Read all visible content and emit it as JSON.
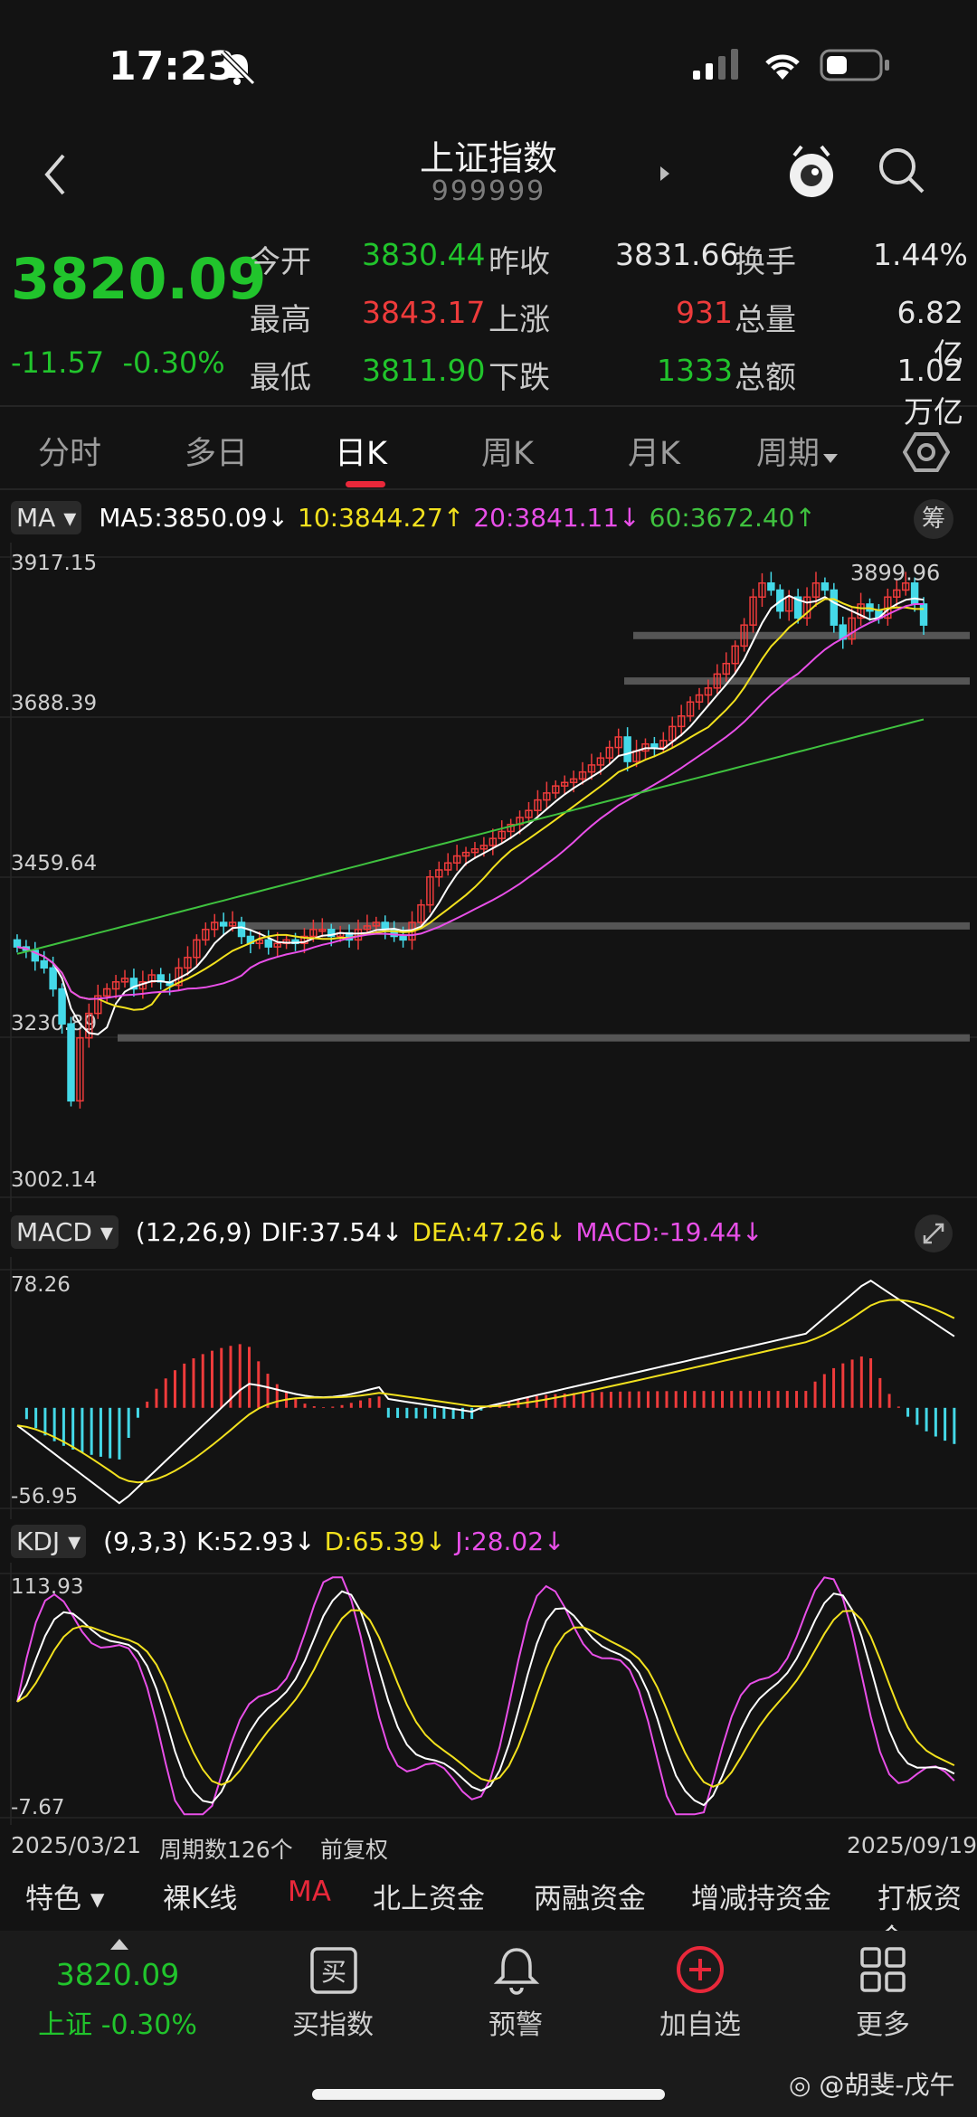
{
  "status_bar": {
    "time": "17:23"
  },
  "header": {
    "title": "上证指数",
    "code": "999999"
  },
  "quote": {
    "price": "3820.09",
    "change": "-11.57",
    "change_pct": "-0.30%",
    "rows": [
      [
        {
          "label": "今开",
          "value": "3830.44",
          "color": "#21c42c"
        },
        {
          "label": "昨收",
          "value": "3831.66",
          "color": "#e6e6e6"
        },
        {
          "label": "换手",
          "value": "1.44%",
          "color": "#e6e6e6"
        }
      ],
      [
        {
          "label": "最高",
          "value": "3843.17",
          "color": "#ee3b3b"
        },
        {
          "label": "上涨",
          "value": "931",
          "color": "#ee3b3b"
        },
        {
          "label": "总量",
          "value": "6.82亿",
          "color": "#e6e6e6"
        }
      ],
      [
        {
          "label": "最低",
          "value": "3811.90",
          "color": "#21c42c"
        },
        {
          "label": "下跌",
          "value": "1333",
          "color": "#21c42c"
        },
        {
          "label": "总额",
          "value": "1.02万亿",
          "color": "#e6e6e6"
        }
      ]
    ]
  },
  "tabs": [
    "分时",
    "多日",
    "日K",
    "周K",
    "月K",
    "周期"
  ],
  "active_tab": "日K",
  "ma_bar": {
    "name": "MA",
    "items": [
      {
        "text": "MA5:3850.09↓",
        "color": "#ffffff"
      },
      {
        "text": "10:3844.27↑",
        "color": "#f2e11e"
      },
      {
        "text": "20:3841.11↓",
        "color": "#e84fe8"
      },
      {
        "text": "60:3672.40↑",
        "color": "#3fc23f"
      }
    ],
    "chip": "筹"
  },
  "macd_bar": {
    "name": "MACD",
    "items": [
      {
        "text": "(12,26,9)",
        "color": "#ffffff"
      },
      {
        "text": "DIF:37.54↓",
        "color": "#ffffff"
      },
      {
        "text": "DEA:47.26↓",
        "color": "#f2e11e"
      },
      {
        "text": "MACD:-19.44↓",
        "color": "#e84fe8"
      }
    ]
  },
  "kdj_bar": {
    "name": "KDJ",
    "items": [
      {
        "text": "(9,3,3)",
        "color": "#ffffff"
      },
      {
        "text": "K:52.93↓",
        "color": "#ffffff"
      },
      {
        "text": "D:65.39↓",
        "color": "#f2e11e"
      },
      {
        "text": "J:28.02↓",
        "color": "#e84fe8"
      }
    ]
  },
  "footer_info": {
    "start": "2025/03/21",
    "periods": "周期数126个",
    "adjust": "前复权",
    "end": "2025/09/19"
  },
  "tags": [
    "特色",
    "裸K线",
    "MA",
    "北上资金",
    "两融资金",
    "增减持资金",
    "打板资金"
  ],
  "active_tag": "MA",
  "bottom_nav": {
    "price": "3820.09",
    "index_label": "上证 -0.30%",
    "items": [
      "买指数",
      "预警",
      "加自选",
      "更多"
    ]
  },
  "watermark": "@胡斐-戊午",
  "colors": {
    "up": "#ee3b3b",
    "down": "#21c42c",
    "ma5": "#ffffff",
    "ma10": "#f2e11e",
    "ma20": "#e84fe8",
    "ma60": "#3fc23f",
    "cyan_candle": "#44d9e8"
  },
  "chart_data": [
    {
      "type": "candlestick",
      "title": "日K",
      "y_ticks": [
        "3917.15",
        "3688.39",
        "3459.64",
        "3230.89",
        "3002.14"
      ],
      "ylim": [
        3002.14,
        3917.15
      ],
      "annotation": "3899.96",
      "x_range": [
        "2025/03/21",
        "2025/09/19"
      ],
      "periods": 126,
      "series": [
        {
          "name": "MA5",
          "last": 3850.09
        },
        {
          "name": "10",
          "last": 3844.27
        },
        {
          "name": "20",
          "last": 3841.11
        },
        {
          "name": "60",
          "last": 3672.4
        }
      ],
      "close_path": [
        3360,
        3355,
        3340,
        3330,
        3300,
        3250,
        3140,
        3230,
        3265,
        3290,
        3300,
        3310,
        3315,
        3300,
        3310,
        3320,
        3310,
        3305,
        3330,
        3345,
        3370,
        3385,
        3395,
        3390,
        3395,
        3375,
        3365,
        3370,
        3360,
        3365,
        3370,
        3365,
        3375,
        3385,
        3385,
        3375,
        3380,
        3370,
        3385,
        3390,
        3395,
        3385,
        3375,
        3370,
        3395,
        3420,
        3460,
        3470,
        3480,
        3490,
        3495,
        3500,
        3505,
        3515,
        3525,
        3535,
        3545,
        3555,
        3570,
        3580,
        3590,
        3595,
        3600,
        3610,
        3620,
        3630,
        3645,
        3660,
        3625,
        3640,
        3650,
        3645,
        3655,
        3675,
        3690,
        3710,
        3720,
        3730,
        3750,
        3765,
        3790,
        3820,
        3860,
        3880,
        3870,
        3840,
        3860,
        3830,
        3860,
        3880,
        3870,
        3820,
        3800,
        3830,
        3850,
        3840,
        3830,
        3860,
        3870,
        3880,
        3850,
        3820
      ],
      "support_lines": [
        3805,
        3740,
        3390,
        3230
      ]
    },
    {
      "type": "bar+line",
      "title": "MACD",
      "y_ticks": [
        "78.26",
        "-56.95"
      ],
      "ylim": [
        -56.95,
        78.26
      ],
      "dif_last": 37.54,
      "dea_last": 47.26,
      "macd_last": -19.44
    },
    {
      "type": "line",
      "title": "KDJ",
      "y_ticks": [
        "113.93",
        "-7.67"
      ],
      "ylim": [
        -7.67,
        113.93
      ],
      "k_last": 52.93,
      "d_last": 65.39,
      "j_last": 28.02
    }
  ]
}
